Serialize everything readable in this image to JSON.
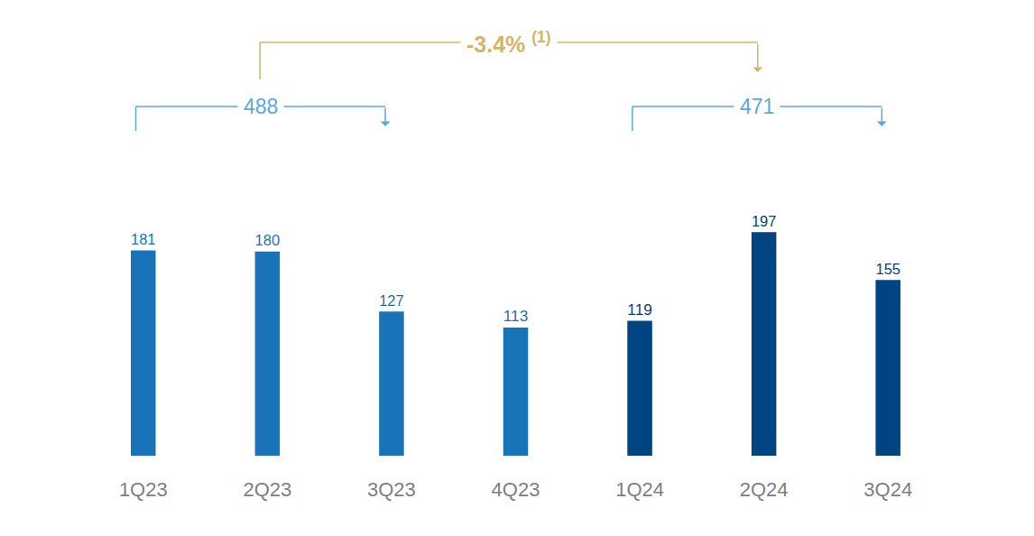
{
  "chart_data": {
    "type": "bar",
    "categories": [
      "1Q23",
      "2Q23",
      "3Q23",
      "4Q23",
      "1Q24",
      "2Q24",
      "3Q24"
    ],
    "values": [
      181,
      180,
      127,
      113,
      119,
      197,
      155
    ],
    "colors": [
      "#1973b8",
      "#1973b8",
      "#1973b8",
      "#1973b8",
      "#004481",
      "#004481",
      "#004481"
    ],
    "data_labels": true,
    "tick_labels": "x",
    "grid": false,
    "ylim": [
      0,
      210
    ],
    "brackets": [
      {
        "text": "488",
        "from": "1Q23",
        "to": "3Q23",
        "color": "#5aa9de"
      },
      {
        "text": "471",
        "from": "1Q24",
        "to": "3Q24",
        "color": "#5aa9de"
      },
      {
        "text": "-3.4%",
        "note": "(1)",
        "from": "2Q23",
        "to": "2Q24",
        "color": "#d4b36a"
      }
    ]
  }
}
